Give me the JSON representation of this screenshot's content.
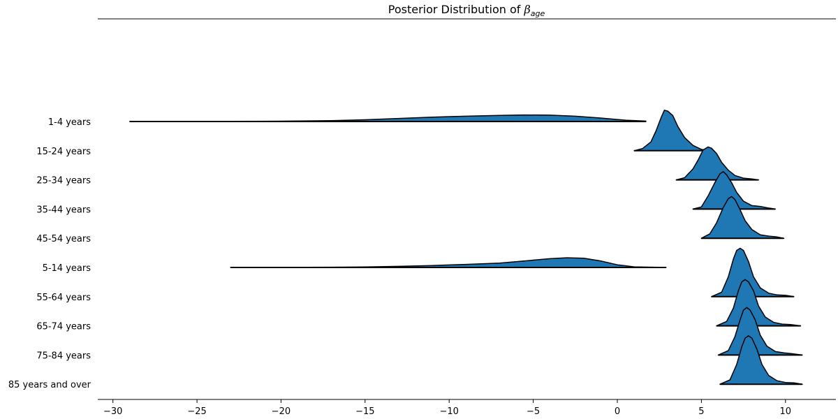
{
  "chart_data": {
    "type": "area",
    "title_prefix": "Posterior Distribution of ",
    "title_symbol": "β",
    "title_subscript": "age",
    "xlabel": "",
    "ylabel": "",
    "xlim": [
      -30.9,
      13.0
    ],
    "xticks": [
      -30,
      -25,
      -20,
      -15,
      -10,
      -5,
      0,
      5,
      10
    ],
    "xtick_labels": [
      "−30",
      "−25",
      "−20",
      "−15",
      "−10",
      "−5",
      "0",
      "5",
      "10"
    ],
    "grid": false,
    "legend": false,
    "color": "#1f77b4",
    "categories": [
      "1-4 years",
      "15-24 years",
      "25-34 years",
      "35-44 years",
      "45-54 years",
      "5-14 years",
      "55-64 years",
      "65-74 years",
      "75-84 years",
      "85 years and over"
    ],
    "series": [
      {
        "x": [
          -29.0,
          -25.0,
          -20.0,
          -17.0,
          -15.0,
          -13.0,
          -11.0,
          -9.0,
          -7.0,
          -5.5,
          -4.0,
          -2.5,
          -1.0,
          0.5,
          1.7
        ],
        "y": [
          0.0,
          0.002,
          0.008,
          0.02,
          0.04,
          0.07,
          0.1,
          0.12,
          0.14,
          0.15,
          0.145,
          0.12,
          0.08,
          0.03,
          0.01
        ]
      },
      {
        "x": [
          1.0,
          1.5,
          2.0,
          2.3,
          2.6,
          2.8,
          3.0,
          3.3,
          3.6,
          4.0,
          4.5,
          5.0,
          5.4
        ],
        "y": [
          0.0,
          0.05,
          0.2,
          0.45,
          0.75,
          0.92,
          0.9,
          0.8,
          0.55,
          0.3,
          0.12,
          0.03,
          0.0
        ]
      },
      {
        "x": [
          3.5,
          4.0,
          4.5,
          4.8,
          5.1,
          5.4,
          5.6,
          5.9,
          6.2,
          6.6,
          7.0,
          7.5,
          8.0,
          8.4
        ],
        "y": [
          0.0,
          0.05,
          0.25,
          0.45,
          0.68,
          0.75,
          0.72,
          0.6,
          0.4,
          0.22,
          0.1,
          0.04,
          0.02,
          0.0
        ]
      },
      {
        "x": [
          4.5,
          5.0,
          5.4,
          5.8,
          6.1,
          6.3,
          6.5,
          6.8,
          7.1,
          7.5,
          8.0,
          8.5,
          8.9,
          9.4
        ],
        "y": [
          0.0,
          0.05,
          0.3,
          0.6,
          0.8,
          0.85,
          0.78,
          0.6,
          0.38,
          0.18,
          0.08,
          0.06,
          0.03,
          0.0
        ]
      },
      {
        "x": [
          5.0,
          5.5,
          5.9,
          6.3,
          6.6,
          6.8,
          7.0,
          7.3,
          7.6,
          8.0,
          8.5,
          9.0,
          9.5,
          9.9
        ],
        "y": [
          0.0,
          0.1,
          0.35,
          0.7,
          0.9,
          0.95,
          0.88,
          0.65,
          0.4,
          0.2,
          0.08,
          0.05,
          0.03,
          0.0
        ]
      },
      {
        "x": [
          -23.0,
          -20.0,
          -17.0,
          -15.0,
          -13.0,
          -11.0,
          -9.0,
          -7.0,
          -5.5,
          -4.0,
          -3.0,
          -2.0,
          -1.0,
          0.0,
          1.0,
          2.9
        ],
        "y": [
          0.0,
          0.002,
          0.006,
          0.012,
          0.025,
          0.045,
          0.07,
          0.1,
          0.15,
          0.2,
          0.22,
          0.21,
          0.15,
          0.06,
          0.015,
          0.0
        ]
      },
      {
        "x": [
          5.6,
          6.2,
          6.6,
          6.9,
          7.1,
          7.3,
          7.5,
          7.8,
          8.1,
          8.5,
          9.0,
          9.5,
          10.0,
          10.5
        ],
        "y": [
          0.0,
          0.1,
          0.45,
          0.85,
          1.05,
          1.1,
          1.05,
          0.8,
          0.45,
          0.2,
          0.08,
          0.04,
          0.03,
          0.0
        ]
      },
      {
        "x": [
          5.9,
          6.5,
          6.9,
          7.2,
          7.4,
          7.6,
          7.8,
          8.1,
          8.4,
          8.8,
          9.3,
          9.8,
          10.3,
          10.9
        ],
        "y": [
          0.0,
          0.1,
          0.4,
          0.8,
          1.0,
          1.05,
          1.0,
          0.8,
          0.45,
          0.2,
          0.08,
          0.04,
          0.03,
          0.0
        ]
      },
      {
        "x": [
          6.0,
          6.6,
          7.0,
          7.3,
          7.5,
          7.7,
          7.9,
          8.2,
          8.5,
          8.9,
          9.4,
          9.9,
          10.4,
          11.0
        ],
        "y": [
          0.0,
          0.1,
          0.42,
          0.8,
          1.02,
          1.08,
          1.02,
          0.8,
          0.45,
          0.2,
          0.08,
          0.05,
          0.03,
          0.0
        ]
      },
      {
        "x": [
          6.1,
          6.7,
          7.1,
          7.4,
          7.6,
          7.8,
          8.0,
          8.3,
          8.6,
          9.0,
          9.5,
          10.0,
          10.5,
          11.0
        ],
        "y": [
          0.0,
          0.1,
          0.45,
          0.85,
          1.05,
          1.1,
          1.05,
          0.8,
          0.45,
          0.2,
          0.08,
          0.04,
          0.03,
          0.0
        ]
      }
    ]
  }
}
